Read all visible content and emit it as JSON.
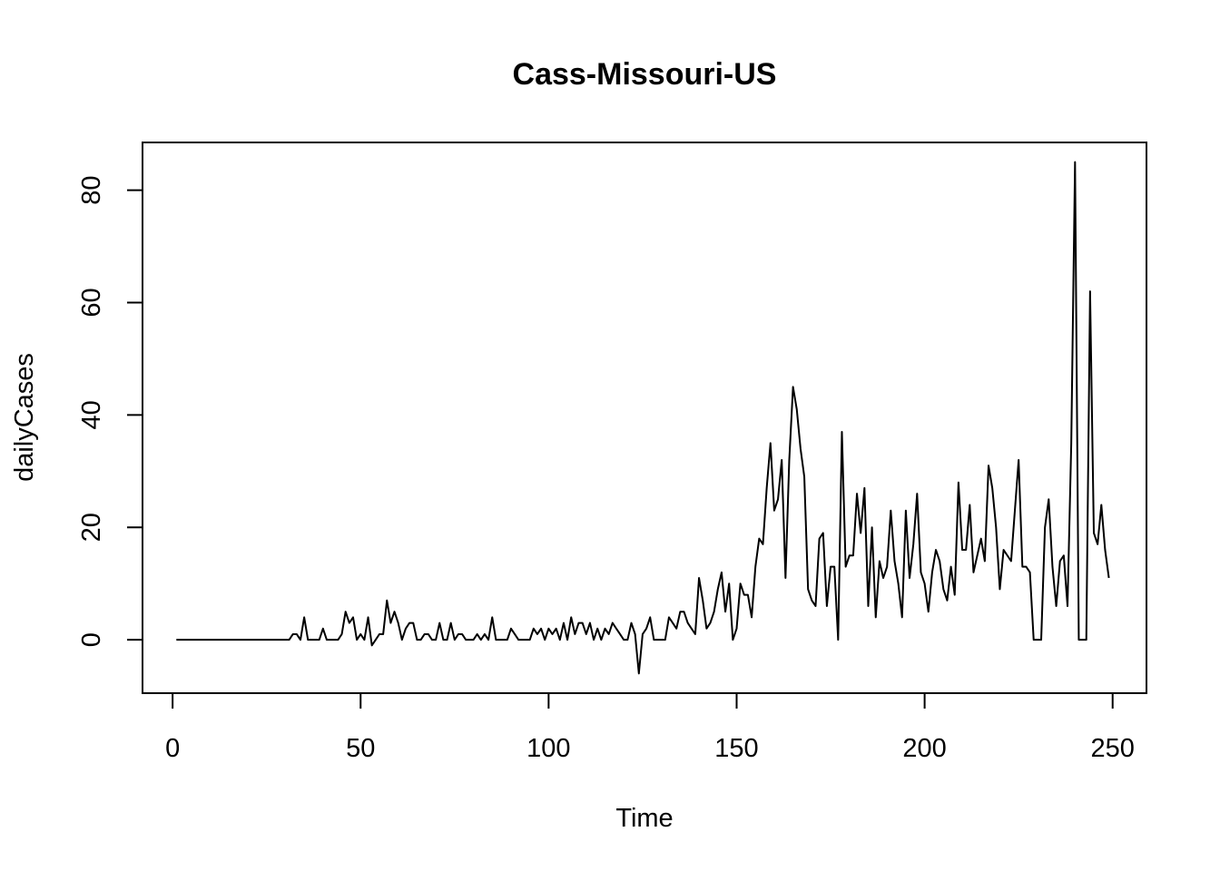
{
  "chart_data": {
    "type": "line",
    "title": "Cass-Missouri-US",
    "xlabel": "Time",
    "ylabel": "dailyCases",
    "xlim": [
      -8,
      259
    ],
    "ylim": [
      -9.5,
      88.5
    ],
    "xticks": [
      0,
      50,
      100,
      150,
      200,
      250
    ],
    "yticks": [
      0,
      20,
      40,
      60,
      80
    ],
    "grid": false,
    "legend": "none",
    "line_color": "#000000",
    "series": [
      {
        "x_start": 1,
        "values": [
          0,
          0,
          0,
          0,
          0,
          0,
          0,
          0,
          0,
          0,
          0,
          0,
          0,
          0,
          0,
          0,
          0,
          0,
          0,
          0,
          0,
          0,
          0,
          0,
          0,
          0,
          0,
          0,
          0,
          0,
          0,
          1,
          1,
          0,
          4,
          0,
          0,
          0,
          0,
          2,
          0,
          0,
          0,
          0,
          1,
          5,
          3,
          4,
          0,
          1,
          0,
          4,
          -1,
          0,
          1,
          1,
          7,
          3,
          5,
          3,
          0,
          2,
          3,
          3,
          0,
          0,
          1,
          1,
          0,
          0,
          3,
          0,
          0,
          3,
          0,
          1,
          1,
          0,
          0,
          0,
          1,
          0,
          1,
          0,
          4,
          0,
          0,
          0,
          0,
          2,
          1,
          0,
          0,
          0,
          0,
          2,
          1,
          2,
          0,
          2,
          1,
          2,
          0,
          3,
          0,
          4,
          1,
          3,
          3,
          1,
          3,
          0,
          2,
          0,
          2,
          1,
          3,
          2,
          1,
          0,
          0,
          3,
          1,
          -6,
          1,
          2,
          4,
          0,
          0,
          0,
          0,
          4,
          3,
          2,
          5,
          5,
          3,
          2,
          1,
          11,
          7,
          2,
          3,
          5,
          9,
          12,
          5,
          10,
          0,
          2,
          10,
          8,
          8,
          4,
          13,
          18,
          17,
          27,
          35,
          23,
          25,
          32,
          11,
          32,
          45,
          41,
          34,
          29,
          9,
          7,
          6,
          18,
          19,
          6,
          13,
          13,
          0,
          37,
          13,
          15,
          15,
          26,
          19,
          27,
          6,
          20,
          4,
          14,
          11,
          13,
          23,
          14,
          10,
          4,
          23,
          11,
          17,
          26,
          12,
          10,
          5,
          12,
          16,
          14,
          9,
          7,
          13,
          8,
          28,
          16,
          16,
          24,
          12,
          15,
          18,
          14,
          31,
          27,
          20,
          9,
          16,
          15,
          14,
          23,
          32,
          13,
          13,
          12,
          0,
          0,
          0,
          20,
          25,
          13,
          6,
          14,
          15,
          6,
          35,
          85,
          0,
          0,
          0,
          62,
          19,
          17,
          24,
          16,
          11
        ]
      }
    ]
  }
}
